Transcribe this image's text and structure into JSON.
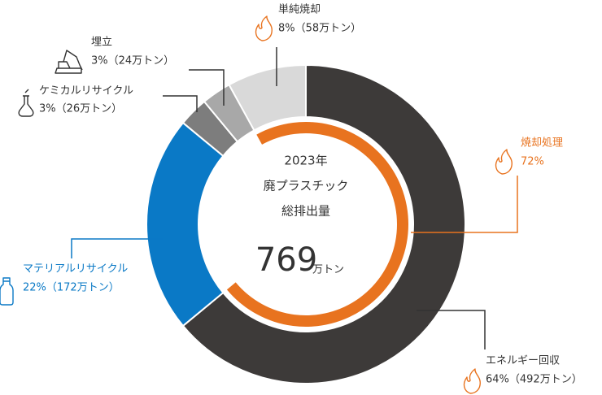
{
  "chart_data": {
    "type": "donut",
    "categories": [
      "エネルギー回収",
      "マテリアルリサイクル",
      "ケミカルリサイクル",
      "埋立",
      "単純焼却"
    ],
    "values": [
      64,
      22,
      3,
      3,
      8
    ],
    "value_labels": [
      "64%（492万トン）",
      "22%（172万トン）",
      "3%（26万トン）",
      "3%（24万トン）",
      "8%（58万トン）"
    ],
    "colors": [
      "#3d3a39",
      "#0a79c6",
      "#7d7d7d",
      "#a8a8a8",
      "#d9d9d9"
    ],
    "inner": {
      "name": "焼却処理",
      "value": 72,
      "value_label": "72%",
      "color": "#e8731f"
    },
    "center_text": [
      "2023年",
      "廃プラスチック",
      "総排出量"
    ],
    "total": 769,
    "total_unit": "万トン"
  }
}
